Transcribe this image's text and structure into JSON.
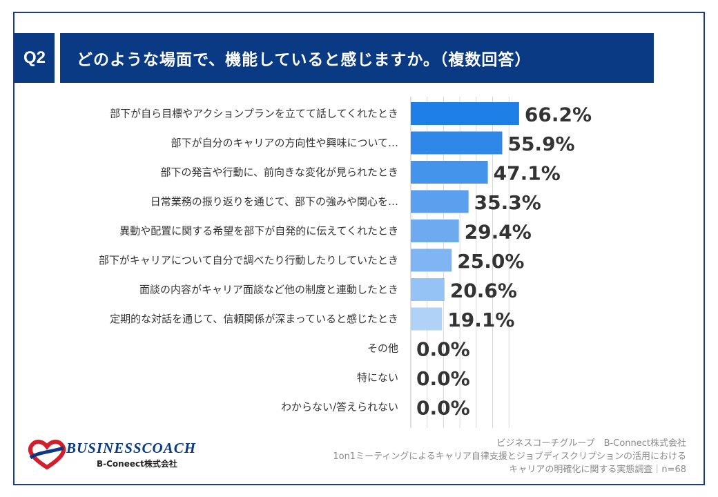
{
  "header": {
    "question_badge": "Q2",
    "title": "どのような場面で、機能していると感じますか。（複数回答）"
  },
  "chart_data": {
    "type": "bar",
    "orientation": "horizontal",
    "categories": [
      "部下が自ら目標やアクションプランを立てて話してくれたとき",
      "部下が自分のキャリアの方向性や興味について…",
      "部下の発言や行動に、前向きな変化が見られたとき",
      "日常業務の振り返りを通じて、部下の強みや関心を…",
      "異動や配置に関する希望を部下が自発的に伝えてくれたとき",
      "部下がキャリアについて自分で調べたり行動したりしていたとき",
      "面談の内容がキャリア面談など他の制度と連動したとき",
      "定期的な対話を通じて、信頼関係が深まっていると感じたとき",
      "その他",
      "特にない",
      "わからない/答えられない"
    ],
    "values": [
      66.2,
      55.9,
      47.1,
      35.3,
      29.4,
      25.0,
      20.6,
      19.1,
      0.0,
      0.0,
      0.0
    ],
    "value_labels": [
      "66.2%",
      "55.9%",
      "47.1%",
      "35.3%",
      "29.4%",
      "25.0%",
      "20.6%",
      "19.1%",
      "0.0%",
      "0.0%",
      "0.0%"
    ],
    "bar_colors": [
      "#1e7fe6",
      "#2f88e8",
      "#4594eb",
      "#5ba0ee",
      "#6daaf0",
      "#7fb5f2",
      "#96c3f5",
      "#b0d2f7",
      "#b0d2f7",
      "#b0d2f7",
      "#b0d2f7"
    ],
    "xlim": [
      0,
      100
    ],
    "grid": true
  },
  "footer": {
    "line1": "ビジネスコーチグループ　B-Connect株式会社",
    "line2": "1on1ミーティングによるキャリア自律支援とジョブディスクリプションの活用における",
    "line3": "キャリアの明確化に関する実態調査｜n=68"
  },
  "logo": {
    "brand": "BUSINESSCOACH",
    "sub": "B-Coneect株式会社"
  }
}
